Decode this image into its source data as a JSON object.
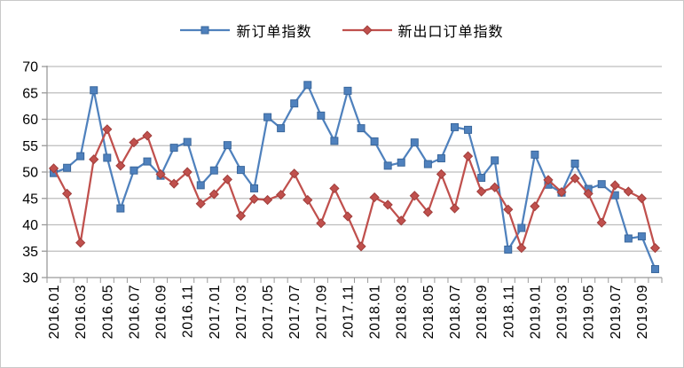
{
  "window": {
    "background": "#FFFFFF",
    "border_color": "#C9C9C9"
  },
  "chart_data": {
    "type": "line",
    "title": "",
    "legend": {
      "position": "top"
    },
    "grid": true,
    "x_label_interval": 2,
    "x_label_rotation": -90,
    "ylim": [
      30,
      70
    ],
    "ytick_step": 5,
    "yticks": [
      30,
      35,
      40,
      45,
      50,
      55,
      60,
      65,
      70
    ],
    "colors": {
      "grid": "#BDBDBD",
      "axis": "#9A9A9A",
      "text": "#000000",
      "series_blue": "#4F81BD",
      "series_red": "#C0504D"
    },
    "categories": [
      "2016.01",
      "2016.02",
      "2016.03",
      "2016.04",
      "2016.05",
      "2016.06",
      "2016.07",
      "2016.08",
      "2016.09",
      "2016.10",
      "2016.11",
      "2016.12",
      "2017.01",
      "2017.02",
      "2017.03",
      "2017.04",
      "2017.05",
      "2017.06",
      "2017.07",
      "2017.08",
      "2017.09",
      "2017.10",
      "2017.11",
      "2017.12",
      "2018.01",
      "2018.02",
      "2018.03",
      "2018.04",
      "2018.05",
      "2018.06",
      "2018.07",
      "2018.08",
      "2018.09",
      "2018.10",
      "2018.11",
      "2018.12",
      "2019.01",
      "2019.02",
      "2019.03",
      "2019.04",
      "2019.05",
      "2019.06",
      "2019.07",
      "2019.08",
      "2019.09",
      "2019.10"
    ],
    "series": [
      {
        "name": "新订单指数",
        "color": "#4F81BD",
        "marker": "square",
        "marker_stroke": "#3A679C",
        "values": [
          49.8,
          50.8,
          53.0,
          65.5,
          52.7,
          43.1,
          50.3,
          52.0,
          49.3,
          54.6,
          55.7,
          47.5,
          50.3,
          55.1,
          50.4,
          46.9,
          60.4,
          58.3,
          63.0,
          66.5,
          60.7,
          55.9,
          65.4,
          58.3,
          55.8,
          51.2,
          51.8,
          55.6,
          51.5,
          52.6,
          58.5,
          58.0,
          48.9,
          52.2,
          35.3,
          39.4,
          53.3,
          47.6,
          46.1,
          51.6,
          46.8,
          47.7,
          45.6,
          37.4,
          37.8,
          31.6
        ]
      },
      {
        "name": "新出口订单指数",
        "color": "#C0504D",
        "marker": "diamond",
        "marker_stroke": "#A03E3B",
        "values": [
          50.7,
          45.9,
          36.6,
          52.4,
          58.1,
          51.2,
          55.6,
          56.9,
          49.6,
          47.8,
          50.0,
          44.0,
          45.8,
          48.6,
          41.7,
          44.9,
          44.7,
          45.7,
          49.7,
          44.7,
          40.3,
          46.9,
          41.6,
          35.9,
          45.2,
          43.8,
          40.8,
          45.5,
          42.4,
          49.6,
          43.1,
          53.0,
          46.3,
          47.1,
          42.9,
          35.6,
          43.5,
          48.5,
          46.2,
          48.8,
          45.9,
          40.4,
          47.5,
          46.3,
          45.0,
          35.6
        ]
      }
    ]
  }
}
